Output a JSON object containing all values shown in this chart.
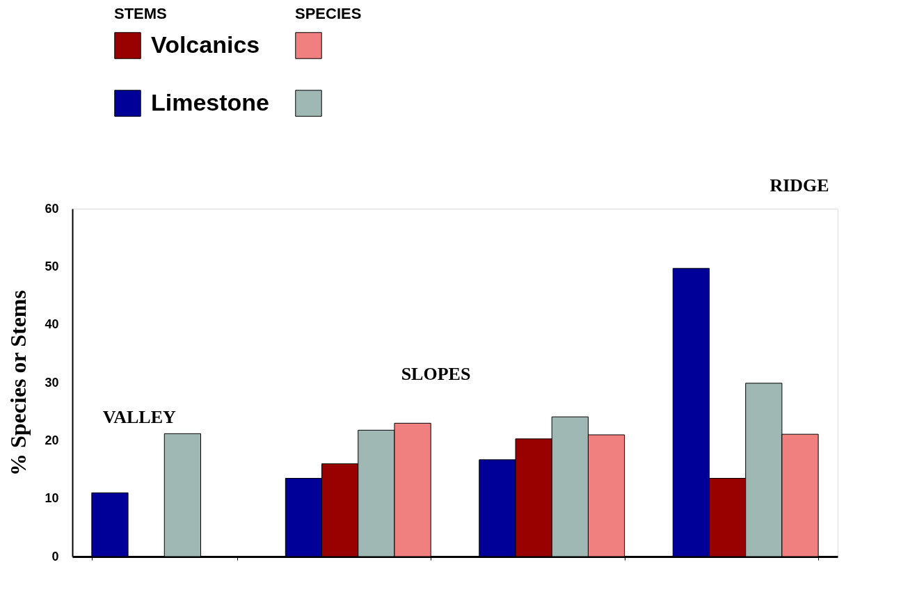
{
  "chart_data": {
    "type": "bar",
    "ylabel": "% Species or Stems",
    "categories": [
      null,
      null,
      null,
      null
    ],
    "series": [
      {
        "name": "Limestone",
        "color": "#000099",
        "values": [
          11,
          13.5,
          16.7,
          49.7
        ]
      },
      {
        "name": "Volcanics",
        "color": "#990000",
        "values": [
          null,
          16,
          20.3,
          13.5
        ]
      },
      {
        "color": "#9fb8b4",
        "values": [
          21.2,
          21.8,
          24.1,
          29.9
        ]
      },
      {
        "color": "#f08080",
        "values": [
          null,
          23,
          21,
          21.1
        ]
      }
    ],
    "ylim": [
      0,
      60
    ],
    "yticks": [
      0,
      10,
      20,
      30,
      40,
      50,
      60
    ],
    "annotations": [
      "STEMS",
      "SPECIES",
      "VALLEY",
      "SLOPES",
      "RIDGE"
    ],
    "legend": "top left",
    "tick_labels": "y",
    "grid": false
  }
}
